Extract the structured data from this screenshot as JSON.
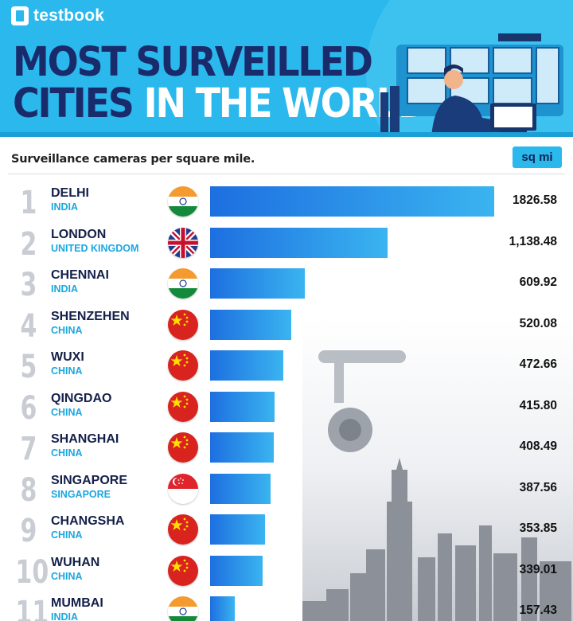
{
  "brand": {
    "name": "testbook"
  },
  "title": {
    "line1": "MOST SURVEILLED",
    "line2_dark": "CITIES",
    "line2_light": "IN THE WORLD"
  },
  "subtitle": "Surveillance cameras per square mile.",
  "unit": "sq mi",
  "colors": {
    "header_bg": "#2bb8ec",
    "title_dark": "#1a2b6b",
    "bar_start": "#1d6fe0",
    "bar_end": "#3ab4f0",
    "country_text": "#1aa7e0"
  },
  "chart_data": {
    "type": "bar",
    "orientation": "horizontal",
    "title": "MOST SURVEILLED CITIES IN THE WORLD",
    "ylabel": "Surveillance cameras per square mile.",
    "unit": "sq mi",
    "rows": [
      {
        "rank": "1",
        "city": "DELHI",
        "country": "INDIA",
        "flag": "india",
        "value": 1826.58,
        "label": "1826.58"
      },
      {
        "rank": "2",
        "city": "LONDON",
        "country": "UNITED KINGDOM",
        "flag": "uk",
        "value": 1138.48,
        "label": "1,138.48"
      },
      {
        "rank": "3",
        "city": "CHENNAI",
        "country": "INDIA",
        "flag": "india",
        "value": 609.92,
        "label": "609.92"
      },
      {
        "rank": "4",
        "city": "SHENZEHEN",
        "country": "CHINA",
        "flag": "china",
        "value": 520.08,
        "label": "520.08"
      },
      {
        "rank": "5",
        "city": "WUXI",
        "country": "CHINA",
        "flag": "china",
        "value": 472.66,
        "label": "472.66"
      },
      {
        "rank": "6",
        "city": "QINGDAO",
        "country": "CHINA",
        "flag": "china",
        "value": 415.8,
        "label": "415.80"
      },
      {
        "rank": "7",
        "city": "SHANGHAI",
        "country": "CHINA",
        "flag": "china",
        "value": 408.49,
        "label": "408.49"
      },
      {
        "rank": "8",
        "city": "SINGAPORE",
        "country": "SINGAPORE",
        "flag": "singapore",
        "value": 387.56,
        "label": "387.56"
      },
      {
        "rank": "9",
        "city": "CHANGSHA",
        "country": "CHINA",
        "flag": "china",
        "value": 353.85,
        "label": "353.85"
      },
      {
        "rank": "10",
        "city": "WUHAN",
        "country": "CHINA",
        "flag": "china",
        "value": 339.01,
        "label": "339.01"
      },
      {
        "rank": "11",
        "city": "MUMBAI",
        "country": "INDIA",
        "flag": "india",
        "value": 157.43,
        "label": "157.43"
      }
    ]
  }
}
